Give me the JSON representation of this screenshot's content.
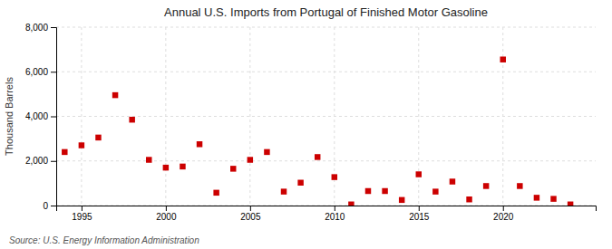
{
  "chart_data": {
    "type": "scatter",
    "title": "Annual U.S. Imports from Portugal of Finished Motor Gasoline",
    "ylabel": "Thousand Barrels",
    "source": "Source: U.S. Energy Information Administration",
    "x": [
      1994,
      1995,
      1996,
      1997,
      1998,
      1999,
      2000,
      2001,
      2002,
      2003,
      2004,
      2005,
      2006,
      2007,
      2008,
      2009,
      2010,
      2011,
      2012,
      2013,
      2014,
      2015,
      2016,
      2017,
      2018,
      2019,
      2020,
      2021,
      2022,
      2023,
      2024
    ],
    "values": [
      2400,
      2700,
      3050,
      4950,
      3850,
      2050,
      1700,
      1750,
      2750,
      575,
      1650,
      2050,
      2400,
      625,
      1025,
      2175,
      1275,
      50,
      650,
      650,
      250,
      1400,
      625,
      1075,
      275,
      875,
      6550,
      875,
      350,
      300,
      50
    ],
    "color": "#cc0000",
    "marker": "square",
    "xlim": [
      1993.5,
      2025.5
    ],
    "xticks": [
      1995,
      2000,
      2005,
      2010,
      2015,
      2020
    ],
    "ylim": [
      0,
      8000
    ],
    "yticks": [
      0,
      {
        "value": 2000,
        "label": "2,000"
      },
      {
        "value": 4000,
        "label": "4,000"
      },
      {
        "value": 6000,
        "label": "6,000"
      },
      {
        "value": 8000,
        "label": "8,000"
      }
    ],
    "grid": true
  }
}
